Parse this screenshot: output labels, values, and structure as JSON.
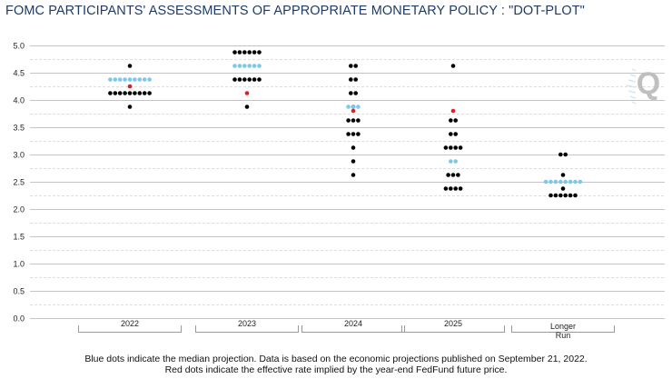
{
  "title": "FOMC PARTICIPANTS' ASSESSMENTS OF APPROPRIATE MONETARY POLICY : \"DOT-PLOT\"",
  "footnotes": [
    "Blue dots indicate the median projection. Data is based on the economic projections published on September 21, 2022.",
    "Red dots indicate the effective rate implied by the year-end FedFund future price."
  ],
  "logo_text": "Q",
  "colors": {
    "participant": "#000000",
    "median": "#7ec8e8",
    "futures": "#e02020",
    "grid": "#c8c8c8",
    "title": "#1f3b66"
  },
  "chart_data": {
    "type": "scatter",
    "title": "FOMC PARTICIPANTS' ASSESSMENTS OF APPROPRIATE MONETARY POLICY : \"DOT-PLOT\"",
    "xlabel": "",
    "ylabel": "",
    "ylim": [
      0,
      5
    ],
    "yticks": [
      "0.0",
      "0.5",
      "1.0",
      "1.5",
      "2.0",
      "2.5",
      "3.0",
      "3.5",
      "4.0",
      "4.5",
      "5.0"
    ],
    "grid": true,
    "categories": [
      "2022",
      "2023",
      "2024",
      "2025",
      "Longer\nRun"
    ],
    "series": [
      {
        "kind": "participants",
        "groups": [
          [
            {
              "rate": 4.625,
              "count": 1
            },
            {
              "rate": 4.125,
              "count": 9
            },
            {
              "rate": 3.875,
              "count": 1
            }
          ],
          [
            {
              "rate": 4.875,
              "count": 6
            },
            {
              "rate": 4.375,
              "count": 6
            },
            {
              "rate": 3.875,
              "count": 1
            }
          ],
          [
            {
              "rate": 4.625,
              "count": 2
            },
            {
              "rate": 4.375,
              "count": 2
            },
            {
              "rate": 4.125,
              "count": 2
            },
            {
              "rate": 3.875,
              "count": 1
            },
            {
              "rate": 3.625,
              "count": 3
            },
            {
              "rate": 3.375,
              "count": 3
            },
            {
              "rate": 3.125,
              "count": 1
            },
            {
              "rate": 2.875,
              "count": 1
            },
            {
              "rate": 2.625,
              "count": 1
            }
          ],
          [
            {
              "rate": 4.625,
              "count": 1
            },
            {
              "rate": 3.625,
              "count": 2
            },
            {
              "rate": 3.375,
              "count": 2
            },
            {
              "rate": 3.125,
              "count": 4
            },
            {
              "rate": 2.625,
              "count": 3
            },
            {
              "rate": 2.375,
              "count": 4
            }
          ],
          [
            {
              "rate": 3.0,
              "count": 2
            },
            {
              "rate": 2.625,
              "count": 1
            },
            {
              "rate": 2.375,
              "count": 1
            },
            {
              "rate": 2.25,
              "count": 6
            }
          ]
        ]
      },
      {
        "kind": "median",
        "groups": [
          [
            {
              "rate": 4.375,
              "count": 9
            }
          ],
          [
            {
              "rate": 4.625,
              "count": 6
            }
          ],
          [
            {
              "rate": 3.875,
              "count": 3
            }
          ],
          [
            {
              "rate": 2.875,
              "count": 2
            }
          ],
          [
            {
              "rate": 2.5,
              "count": 8
            }
          ]
        ]
      },
      {
        "kind": "futures",
        "values": [
          4.25,
          4.125,
          3.8,
          3.8,
          null
        ]
      }
    ]
  }
}
